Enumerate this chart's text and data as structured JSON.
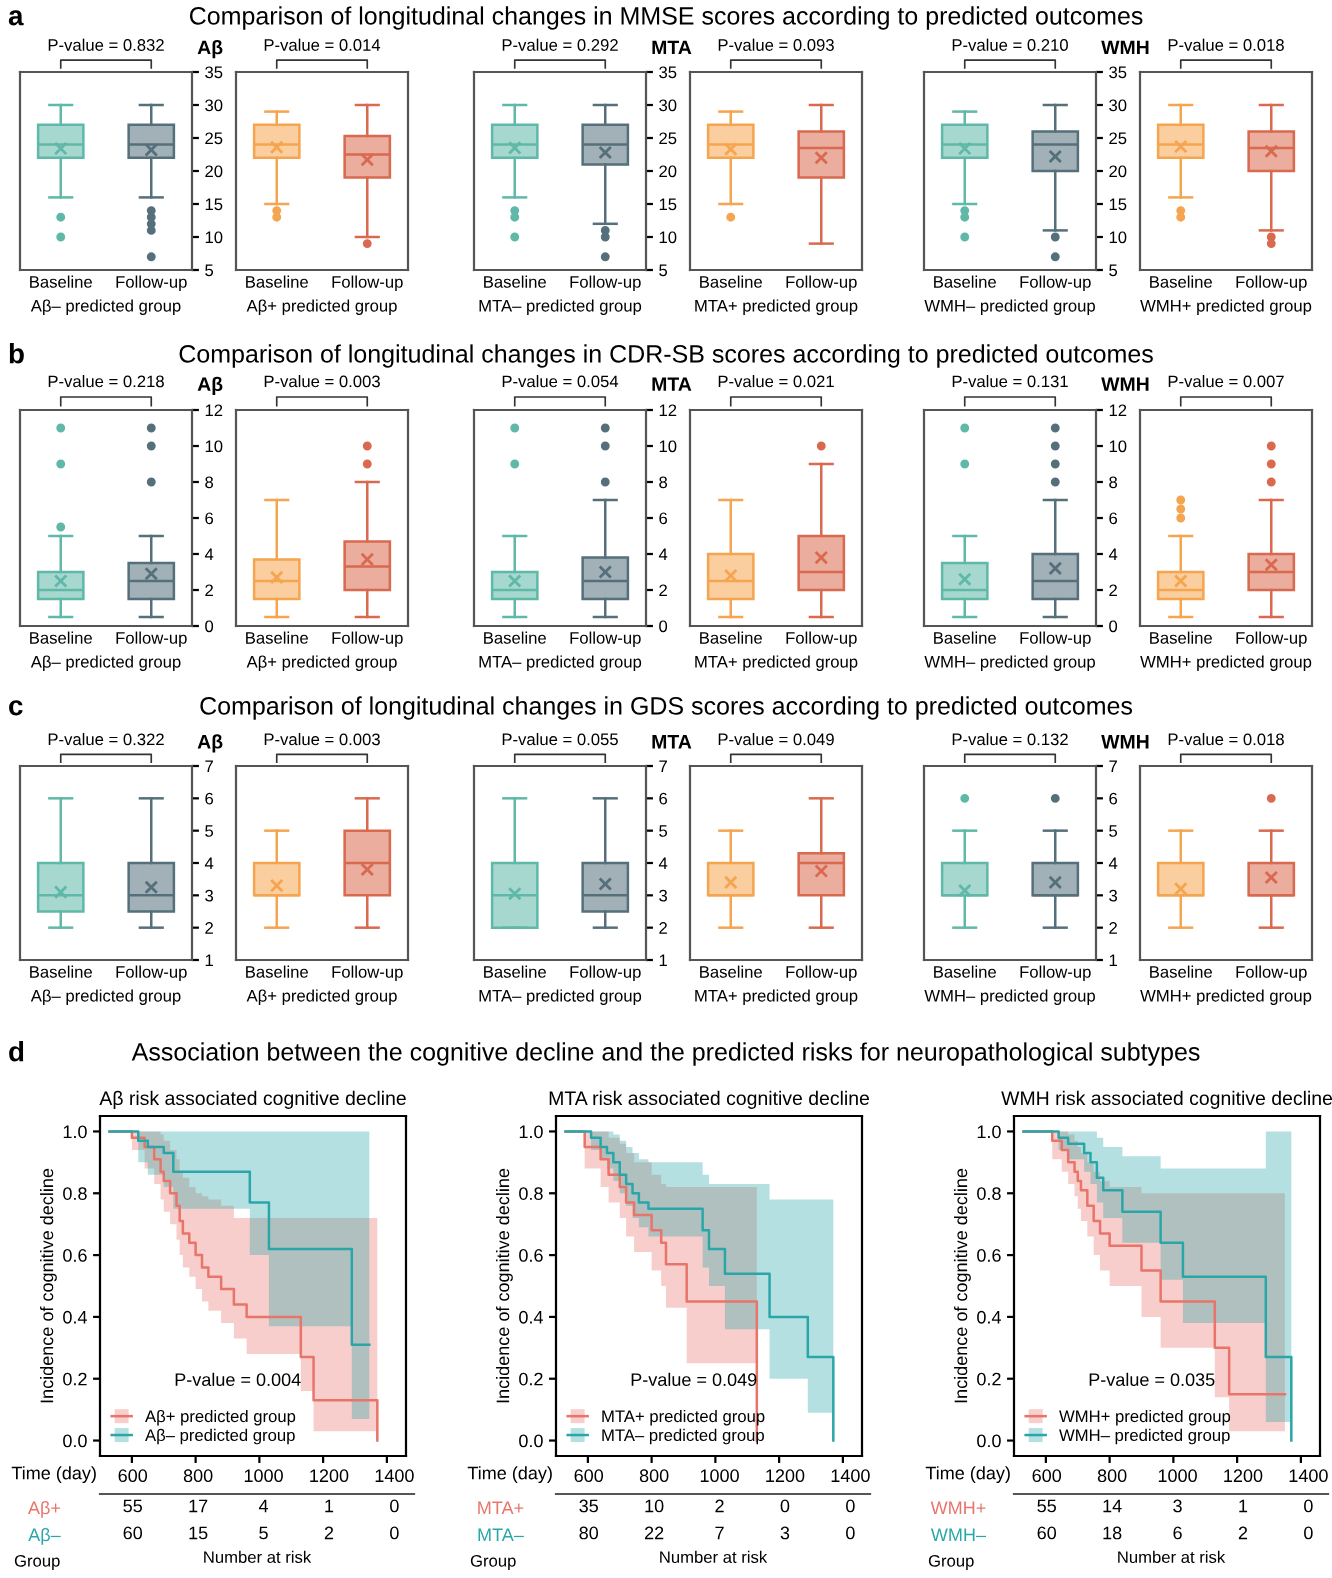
{
  "chart_data": [
    {
      "type": "box",
      "title": "Comparison of longitudinal changes in MMSE scores according to predicted outcomes",
      "annotations": [
        "a",
        "P-value = 0.832"
      ],
      "categories": [
        "Baseline",
        "Follow-up"
      ],
      "xlabel": "Aβ– predicted group",
      "ylabel": "Aβ",
      "colors": [
        "#5fb8a8",
        "#56707b"
      ],
      "ylim": [
        5,
        35
      ],
      "yticks": [
        5,
        10,
        15,
        20,
        25,
        30,
        35
      ],
      "boxes": [
        {
          "low": 16,
          "q1": 22,
          "median": 24,
          "q3": 27,
          "high": 30,
          "mean": 23.4,
          "outliers": [
            13,
            10
          ]
        },
        {
          "low": 16,
          "q1": 22,
          "median": 24,
          "q3": 27,
          "high": 30,
          "mean": 23.2,
          "outliers": [
            14,
            13,
            12,
            11,
            7
          ]
        }
      ]
    },
    {
      "type": "box",
      "annotations": [
        "P-value = 0.014"
      ],
      "categories": [
        "Baseline",
        "Follow-up"
      ],
      "xlabel": "Aβ+ predicted group",
      "tick_labels": "x",
      "colors": [
        "#f5a54f",
        "#d9694f"
      ],
      "ylim": [
        5,
        35
      ],
      "yticks": [
        5,
        10,
        15,
        20,
        25,
        30,
        35
      ],
      "boxes": [
        {
          "low": 15,
          "q1": 22,
          "median": 24,
          "q3": 27,
          "high": 29,
          "mean": 23.6,
          "outliers": [
            14,
            13
          ]
        },
        {
          "low": 10,
          "q1": 19,
          "median": 22.5,
          "q3": 25.3,
          "high": 30,
          "mean": 21.7,
          "outliers": [
            9
          ]
        }
      ]
    },
    {
      "type": "box",
      "annotations": [
        "P-value = 0.292"
      ],
      "categories": [
        "Baseline",
        "Follow-up"
      ],
      "xlabel": "MTA– predicted group",
      "ylabel": "MTA",
      "colors": [
        "#5fb8a8",
        "#56707b"
      ],
      "ylim": [
        5,
        35
      ],
      "yticks": [
        5,
        10,
        15,
        20,
        25,
        30,
        35
      ],
      "boxes": [
        {
          "low": 16,
          "q1": 22,
          "median": 24,
          "q3": 27,
          "high": 30,
          "mean": 23.5,
          "outliers": [
            14,
            13,
            10
          ]
        },
        {
          "low": 12,
          "q1": 21,
          "median": 24,
          "q3": 27,
          "high": 30,
          "mean": 22.8,
          "outliers": [
            11,
            10,
            7
          ]
        }
      ]
    },
    {
      "type": "box",
      "annotations": [
        "P-value = 0.093"
      ],
      "categories": [
        "Baseline",
        "Follow-up"
      ],
      "xlabel": "MTA+ predicted group",
      "tick_labels": "x",
      "colors": [
        "#f5a54f",
        "#d9694f"
      ],
      "ylim": [
        5,
        35
      ],
      "yticks": [
        5,
        10,
        15,
        20,
        25,
        30,
        35
      ],
      "boxes": [
        {
          "low": 15,
          "q1": 22,
          "median": 24,
          "q3": 27,
          "high": 29,
          "mean": 23.3,
          "outliers": [
            13
          ]
        },
        {
          "low": 9,
          "q1": 19,
          "median": 23.5,
          "q3": 26,
          "high": 30,
          "mean": 22.0
        }
      ]
    },
    {
      "type": "box",
      "annotations": [
        "P-value = 0.210"
      ],
      "categories": [
        "Baseline",
        "Follow-up"
      ],
      "xlabel": "WMH– predicted group",
      "ylabel": "WMH",
      "colors": [
        "#5fb8a8",
        "#56707b"
      ],
      "ylim": [
        5,
        35
      ],
      "yticks": [
        5,
        10,
        15,
        20,
        25,
        30,
        35
      ],
      "boxes": [
        {
          "low": 15,
          "q1": 22,
          "median": 24,
          "q3": 27,
          "high": 29,
          "mean": 23.4,
          "outliers": [
            14,
            13,
            10
          ]
        },
        {
          "low": 11,
          "q1": 20,
          "median": 24,
          "q3": 26,
          "high": 30,
          "mean": 22.2,
          "outliers": [
            10,
            7
          ]
        }
      ]
    },
    {
      "type": "box",
      "annotations": [
        "P-value = 0.018"
      ],
      "categories": [
        "Baseline",
        "Follow-up"
      ],
      "xlabel": "WMH+ predicted group",
      "tick_labels": "x",
      "colors": [
        "#f5a54f",
        "#d9694f"
      ],
      "ylim": [
        5,
        35
      ],
      "yticks": [
        5,
        10,
        15,
        20,
        25,
        30,
        35
      ],
      "boxes": [
        {
          "low": 16,
          "q1": 22,
          "median": 24,
          "q3": 27,
          "high": 30,
          "mean": 23.7,
          "outliers": [
            14,
            13
          ]
        },
        {
          "low": 11,
          "q1": 20,
          "median": 23.5,
          "q3": 26,
          "high": 30,
          "mean": 23.0,
          "outliers": [
            10,
            9
          ]
        }
      ]
    },
    {
      "type": "box",
      "title": "Comparison of longitudinal changes in CDR-SB scores according to predicted outcomes",
      "annotations": [
        "b",
        "P-value = 0.218"
      ],
      "categories": [
        "Baseline",
        "Follow-up"
      ],
      "xlabel": "Aβ– predicted group",
      "ylabel": "Aβ",
      "colors": [
        "#5fb8a8",
        "#56707b"
      ],
      "ylim": [
        0,
        12
      ],
      "yticks": [
        0,
        2,
        4,
        6,
        8,
        10,
        12
      ],
      "boxes": [
        {
          "low": 0.5,
          "q1": 1.5,
          "median": 2,
          "q3": 3,
          "high": 5,
          "mean": 2.5,
          "outliers": [
            5.5,
            9,
            11
          ]
        },
        {
          "low": 0.5,
          "q1": 1.5,
          "median": 2.5,
          "q3": 3.5,
          "high": 5,
          "mean": 2.9,
          "outliers": [
            8,
            10,
            11
          ]
        }
      ]
    },
    {
      "type": "box",
      "annotations": [
        "P-value = 0.003"
      ],
      "categories": [
        "Baseline",
        "Follow-up"
      ],
      "xlabel": "Aβ+ predicted group",
      "tick_labels": "x",
      "colors": [
        "#f5a54f",
        "#d9694f"
      ],
      "ylim": [
        0,
        12
      ],
      "yticks": [
        0,
        2,
        4,
        6,
        8,
        10,
        12
      ],
      "boxes": [
        {
          "low": 0.5,
          "q1": 1.5,
          "median": 2.5,
          "q3": 3.7,
          "high": 7,
          "mean": 2.7
        },
        {
          "low": 0.5,
          "q1": 2,
          "median": 3.3,
          "q3": 4.7,
          "high": 8,
          "mean": 3.7,
          "outliers": [
            9,
            10
          ]
        }
      ]
    },
    {
      "type": "box",
      "annotations": [
        "P-value = 0.054"
      ],
      "categories": [
        "Baseline",
        "Follow-up"
      ],
      "xlabel": "MTA– predicted group",
      "ylabel": "MTA",
      "colors": [
        "#5fb8a8",
        "#56707b"
      ],
      "ylim": [
        0,
        12
      ],
      "yticks": [
        0,
        2,
        4,
        6,
        8,
        10,
        12
      ],
      "boxes": [
        {
          "low": 0.5,
          "q1": 1.5,
          "median": 2,
          "q3": 3,
          "high": 5,
          "mean": 2.5,
          "outliers": [
            9,
            11
          ]
        },
        {
          "low": 0.5,
          "q1": 1.5,
          "median": 2.5,
          "q3": 3.8,
          "high": 7,
          "mean": 3.0,
          "outliers": [
            8,
            10,
            11
          ]
        }
      ]
    },
    {
      "type": "box",
      "annotations": [
        "P-value = 0.021"
      ],
      "categories": [
        "Baseline",
        "Follow-up"
      ],
      "xlabel": "MTA+ predicted group",
      "tick_labels": "x",
      "colors": [
        "#f5a54f",
        "#d9694f"
      ],
      "ylim": [
        0,
        12
      ],
      "yticks": [
        0,
        2,
        4,
        6,
        8,
        10,
        12
      ],
      "boxes": [
        {
          "low": 0.5,
          "q1": 1.5,
          "median": 2.5,
          "q3": 4,
          "high": 7,
          "mean": 2.8
        },
        {
          "low": 0.5,
          "q1": 2,
          "median": 3,
          "q3": 5,
          "high": 9,
          "mean": 3.8,
          "outliers": [
            10
          ]
        }
      ]
    },
    {
      "type": "box",
      "annotations": [
        "P-value = 0.131"
      ],
      "categories": [
        "Baseline",
        "Follow-up"
      ],
      "xlabel": "WMH– predicted group",
      "ylabel": "WMH",
      "colors": [
        "#5fb8a8",
        "#56707b"
      ],
      "ylim": [
        0,
        12
      ],
      "yticks": [
        0,
        2,
        4,
        6,
        8,
        10,
        12
      ],
      "boxes": [
        {
          "low": 0.5,
          "q1": 1.5,
          "median": 2,
          "q3": 3.5,
          "high": 5,
          "mean": 2.6,
          "outliers": [
            9,
            11
          ]
        },
        {
          "low": 0.5,
          "q1": 1.5,
          "median": 2.5,
          "q3": 4,
          "high": 7,
          "mean": 3.2,
          "outliers": [
            8,
            9,
            10,
            11
          ]
        }
      ]
    },
    {
      "type": "box",
      "annotations": [
        "P-value = 0.007"
      ],
      "categories": [
        "Baseline",
        "Follow-up"
      ],
      "xlabel": "WMH+ predicted group",
      "tick_labels": "x",
      "colors": [
        "#f5a54f",
        "#d9694f"
      ],
      "ylim": [
        0,
        12
      ],
      "yticks": [
        0,
        2,
        4,
        6,
        8,
        10,
        12
      ],
      "boxes": [
        {
          "low": 0.5,
          "q1": 1.5,
          "median": 2,
          "q3": 3,
          "high": 5,
          "mean": 2.5,
          "outliers": [
            6,
            6.5,
            7
          ]
        },
        {
          "low": 0.5,
          "q1": 2,
          "median": 3,
          "q3": 4,
          "high": 7,
          "mean": 3.4,
          "outliers": [
            8,
            9,
            10
          ]
        }
      ]
    },
    {
      "type": "box",
      "title": "Comparison of longitudinal changes in GDS scores according to predicted outcomes",
      "annotations": [
        "c",
        "P-value = 0.322"
      ],
      "categories": [
        "Baseline",
        "Follow-up"
      ],
      "xlabel": "Aβ– predicted group",
      "ylabel": "Aβ",
      "colors": [
        "#5fb8a8",
        "#56707b"
      ],
      "ylim": [
        1,
        7
      ],
      "yticks": [
        1,
        2,
        3,
        4,
        5,
        6,
        7
      ],
      "boxes": [
        {
          "low": 2,
          "q1": 2.5,
          "median": 3,
          "q3": 4,
          "high": 6,
          "mean": 3.1
        },
        {
          "low": 2,
          "q1": 2.5,
          "median": 3,
          "q3": 4,
          "high": 6,
          "mean": 3.25
        }
      ]
    },
    {
      "type": "box",
      "annotations": [
        "P-value = 0.003"
      ],
      "categories": [
        "Baseline",
        "Follow-up"
      ],
      "xlabel": "Aβ+ predicted group",
      "tick_labels": "x",
      "colors": [
        "#f5a54f",
        "#d9694f"
      ],
      "ylim": [
        1,
        7
      ],
      "yticks": [
        1,
        2,
        3,
        4,
        5,
        6,
        7
      ],
      "boxes": [
        {
          "low": 2,
          "q1": 3,
          "median": 3,
          "q3": 4,
          "high": 5,
          "mean": 3.3
        },
        {
          "low": 2,
          "q1": 3,
          "median": 4,
          "q3": 5,
          "high": 6,
          "mean": 3.8
        }
      ]
    },
    {
      "type": "box",
      "annotations": [
        "P-value = 0.055"
      ],
      "categories": [
        "Baseline",
        "Follow-up"
      ],
      "xlabel": "MTA– predicted group",
      "ylabel": "MTA",
      "colors": [
        "#5fb8a8",
        "#56707b"
      ],
      "ylim": [
        1,
        7
      ],
      "yticks": [
        1,
        2,
        3,
        4,
        5,
        6,
        7
      ],
      "boxes": [
        {
          "low": 2,
          "q1": 2,
          "median": 3,
          "q3": 4,
          "high": 6,
          "mean": 3.05
        },
        {
          "low": 2,
          "q1": 2.5,
          "median": 3,
          "q3": 4,
          "high": 6,
          "mean": 3.35
        }
      ]
    },
    {
      "type": "box",
      "annotations": [
        "P-value = 0.049"
      ],
      "categories": [
        "Baseline",
        "Follow-up"
      ],
      "xlabel": "MTA+ predicted group",
      "tick_labels": "x",
      "colors": [
        "#f5a54f",
        "#d9694f"
      ],
      "ylim": [
        1,
        7
      ],
      "yticks": [
        1,
        2,
        3,
        4,
        5,
        6,
        7
      ],
      "boxes": [
        {
          "low": 2,
          "q1": 3,
          "median": 3,
          "q3": 4,
          "high": 5,
          "mean": 3.4
        },
        {
          "low": 2,
          "q1": 3,
          "median": 4,
          "q3": 4.3,
          "high": 6,
          "mean": 3.75
        }
      ]
    },
    {
      "type": "box",
      "annotations": [
        "P-value = 0.132"
      ],
      "categories": [
        "Baseline",
        "Follow-up"
      ],
      "xlabel": "WMH– predicted group",
      "ylabel": "WMH",
      "colors": [
        "#5fb8a8",
        "#56707b"
      ],
      "ylim": [
        1,
        7
      ],
      "yticks": [
        1,
        2,
        3,
        4,
        5,
        6,
        7
      ],
      "boxes": [
        {
          "low": 2,
          "q1": 3,
          "median": 3,
          "q3": 4,
          "high": 5,
          "mean": 3.15,
          "outliers": [
            6
          ]
        },
        {
          "low": 2,
          "q1": 3,
          "median": 3,
          "q3": 4,
          "high": 5,
          "mean": 3.4,
          "outliers": [
            6
          ]
        }
      ]
    },
    {
      "type": "box",
      "annotations": [
        "P-value = 0.018"
      ],
      "categories": [
        "Baseline",
        "Follow-up"
      ],
      "xlabel": "WMH+ predicted group",
      "tick_labels": "x",
      "colors": [
        "#f5a54f",
        "#d9694f"
      ],
      "ylim": [
        1,
        7
      ],
      "yticks": [
        1,
        2,
        3,
        4,
        5,
        6,
        7
      ],
      "boxes": [
        {
          "low": 2,
          "q1": 3,
          "median": 3,
          "q3": 4,
          "high": 5,
          "mean": 3.2
        },
        {
          "low": 2,
          "q1": 3,
          "median": 3,
          "q3": 4,
          "high": 5,
          "mean": 3.55,
          "outliers": [
            6
          ]
        }
      ]
    },
    {
      "type": "step",
      "tick_labels": "y",
      "subtitle": "Association between the cognitive decline and the predicted risks for neuropathological subtypes",
      "title": "Aβ risk associated cognitive decline",
      "annotations": [
        "d",
        "P-value = 0.004"
      ],
      "xlabel": "Time (day)",
      "ylabel": "Incidence of cognitive decline",
      "xlim": [
        500,
        1460
      ],
      "xticks": [
        600,
        800,
        1000,
        1200,
        1400
      ],
      "ylim": [
        -0.05,
        1.05
      ],
      "yticks": [
        {
          "value": 0,
          "label": "0.0"
        },
        {
          "value": 0.2,
          "label": "0.2"
        },
        {
          "value": 0.4,
          "label": "0.4"
        },
        {
          "value": 0.6,
          "label": "0.6"
        },
        {
          "value": 0.8,
          "label": "0.8"
        },
        {
          "value": 1,
          "label": "1.0"
        }
      ],
      "legend": "bottom left",
      "series": [
        {
          "name": "Aβ+ predicted group",
          "color": "#e8746a",
          "x": [
            530,
            600,
            640,
            670,
            690,
            700,
            720,
            740,
            750,
            760,
            780,
            800,
            820,
            840,
            880,
            920,
            960,
            1130,
            1170,
            1370
          ],
          "values": [
            1,
            0.98,
            0.95,
            0.91,
            0.87,
            0.84,
            0.8,
            0.76,
            0.71,
            0.67,
            0.64,
            0.6,
            0.56,
            0.53,
            0.49,
            0.44,
            0.4,
            0.27,
            0.13,
            0
          ],
          "upper": [
            1,
            1,
            1,
            1,
            0.99,
            0.97,
            0.94,
            0.91,
            0.87,
            0.85,
            0.82,
            0.8,
            0.79,
            0.78,
            0.76,
            0.72,
            0.72,
            0.72,
            0.72,
            0.72
          ],
          "lower": [
            1,
            0.94,
            0.88,
            0.83,
            0.78,
            0.74,
            0.7,
            0.65,
            0.6,
            0.56,
            0.53,
            0.49,
            0.45,
            0.42,
            0.38,
            0.33,
            0.28,
            0.16,
            0.03,
            0
          ]
        },
        {
          "name": "Aβ– predicted group",
          "color": "#2aa6a8",
          "x": [
            530,
            620,
            650,
            700,
            730,
            970,
            1030,
            1290,
            1345
          ],
          "values": [
            1,
            0.97,
            0.95,
            0.93,
            0.87,
            0.77,
            0.62,
            0.31,
            0.31
          ],
          "upper": [
            1,
            1,
            1,
            1,
            1,
            1,
            1,
            1,
            1
          ],
          "lower": [
            1,
            0.9,
            0.86,
            0.82,
            0.75,
            0.6,
            0.37,
            0.07,
            0.07
          ]
        }
      ]
    },
    {
      "type": "step",
      "tick_labels": "y",
      "title": "MTA risk associated cognitive decline",
      "annotations": [
        "P-value = 0.049"
      ],
      "xlabel": "Time (day)",
      "ylabel": "Incidence of cognitive decline",
      "xlim": [
        500,
        1460
      ],
      "xticks": [
        600,
        800,
        1000,
        1200,
        1400
      ],
      "ylim": [
        -0.05,
        1.05
      ],
      "yticks": [
        {
          "value": 0,
          "label": "0.0"
        },
        {
          "value": 0.2,
          "label": "0.2"
        },
        {
          "value": 0.4,
          "label": "0.4"
        },
        {
          "value": 0.6,
          "label": "0.6"
        },
        {
          "value": 0.8,
          "label": "0.8"
        },
        {
          "value": 1,
          "label": "1.0"
        }
      ],
      "legend": "bottom left",
      "series": [
        {
          "name": "MTA+ predicted group",
          "color": "#e8746a",
          "x": [
            530,
            590,
            640,
            665,
            700,
            720,
            745,
            800,
            830,
            845,
            910,
            1130
          ],
          "values": [
            1,
            0.95,
            0.91,
            0.86,
            0.82,
            0.77,
            0.73,
            0.68,
            0.64,
            0.57,
            0.45,
            0
          ],
          "upper": [
            1,
            1,
            1,
            0.98,
            0.96,
            0.93,
            0.9,
            0.86,
            0.83,
            0.82,
            0.82,
            0.82
          ],
          "lower": [
            1,
            0.88,
            0.82,
            0.77,
            0.72,
            0.66,
            0.61,
            0.55,
            0.5,
            0.43,
            0.25,
            0
          ]
        },
        {
          "name": "MTA– predicted group",
          "color": "#2aa6a8",
          "x": [
            530,
            610,
            640,
            660,
            680,
            700,
            720,
            740,
            760,
            790,
            960,
            980,
            1030,
            1170,
            1290,
            1370
          ],
          "values": [
            1,
            0.98,
            0.95,
            0.93,
            0.9,
            0.86,
            0.83,
            0.8,
            0.77,
            0.75,
            0.68,
            0.62,
            0.54,
            0.4,
            0.27,
            0
          ],
          "upper": [
            1,
            1,
            1,
            1,
            0.99,
            0.97,
            0.95,
            0.93,
            0.91,
            0.9,
            0.86,
            0.83,
            0.83,
            0.78,
            0.78,
            0.78
          ],
          "lower": [
            1,
            0.94,
            0.91,
            0.88,
            0.84,
            0.8,
            0.76,
            0.72,
            0.69,
            0.66,
            0.56,
            0.5,
            0.36,
            0.2,
            0.09,
            0
          ]
        }
      ]
    },
    {
      "type": "step",
      "tick_labels": "y",
      "title": "WMH risk associated cognitive decline",
      "annotations": [
        "P-value = 0.035"
      ],
      "xlabel": "Time (day)",
      "ylabel": "Incidence of cognitive decline",
      "xlim": [
        500,
        1460
      ],
      "xticks": [
        600,
        800,
        1000,
        1200,
        1400
      ],
      "ylim": [
        -0.05,
        1.05
      ],
      "yticks": [
        {
          "value": 0,
          "label": "0.0"
        },
        {
          "value": 0.2,
          "label": "0.2"
        },
        {
          "value": 0.4,
          "label": "0.4"
        },
        {
          "value": 0.6,
          "label": "0.6"
        },
        {
          "value": 0.8,
          "label": "0.8"
        },
        {
          "value": 1,
          "label": "1.0"
        }
      ],
      "legend": "bottom left",
      "series": [
        {
          "name": "WMH+ predicted group",
          "color": "#e8746a",
          "x": [
            530,
            620,
            650,
            670,
            690,
            700,
            710,
            730,
            750,
            770,
            800,
            900,
            960,
            1130,
            1175,
            1350
          ],
          "values": [
            1,
            0.97,
            0.94,
            0.9,
            0.87,
            0.84,
            0.81,
            0.76,
            0.71,
            0.67,
            0.63,
            0.55,
            0.45,
            0.3,
            0.15,
            0.15
          ],
          "upper": [
            1,
            1,
            1,
            0.99,
            0.97,
            0.95,
            0.93,
            0.9,
            0.87,
            0.84,
            0.82,
            0.8,
            0.8,
            0.8,
            0.8,
            0.8
          ],
          "lower": [
            1,
            0.91,
            0.87,
            0.83,
            0.79,
            0.75,
            0.71,
            0.66,
            0.6,
            0.55,
            0.5,
            0.4,
            0.3,
            0.14,
            0.03,
            0.03
          ]
        },
        {
          "name": "WMH– predicted group",
          "color": "#2aa6a8",
          "x": [
            530,
            640,
            670,
            720,
            740,
            760,
            780,
            840,
            960,
            1030,
            1290,
            1370
          ],
          "values": [
            1,
            0.98,
            0.96,
            0.93,
            0.9,
            0.85,
            0.81,
            0.74,
            0.64,
            0.53,
            0.27,
            0
          ],
          "upper": [
            1,
            1,
            1,
            1,
            1,
            0.98,
            0.95,
            0.92,
            0.88,
            0.88,
            1,
            1
          ],
          "lower": [
            1,
            0.94,
            0.91,
            0.87,
            0.83,
            0.77,
            0.72,
            0.64,
            0.52,
            0.38,
            0.06,
            0
          ]
        }
      ]
    },
    {
      "type": "heatmap",
      "xlabel": "Number at risk",
      "annotations": [
        "Group"
      ],
      "data_labels": true,
      "categories": [
        "600",
        "800",
        "1000",
        "1200",
        "1400"
      ],
      "y_categories": [
        "Aβ+",
        "Aβ–"
      ],
      "cells": [
        [
          55,
          17,
          4,
          1,
          0
        ],
        [
          60,
          15,
          5,
          2,
          0
        ]
      ]
    },
    {
      "type": "heatmap",
      "xlabel": "Number at risk",
      "annotations": [
        "Group"
      ],
      "data_labels": true,
      "categories": [
        "600",
        "800",
        "1000",
        "1200",
        "1400"
      ],
      "y_categories": [
        "MTA+",
        "MTA–"
      ],
      "cells": [
        [
          35,
          10,
          2,
          0,
          0
        ],
        [
          80,
          22,
          7,
          3,
          0
        ]
      ]
    },
    {
      "type": "heatmap",
      "xlabel": "Number at risk",
      "annotations": [
        "Group"
      ],
      "data_labels": true,
      "categories": [
        "600",
        "800",
        "1000",
        "1200",
        "1400"
      ],
      "y_categories": [
        "WMH+",
        "WMH–"
      ],
      "cells": [
        [
          55,
          14,
          3,
          1,
          0
        ],
        [
          60,
          18,
          6,
          2,
          0
        ]
      ]
    }
  ]
}
